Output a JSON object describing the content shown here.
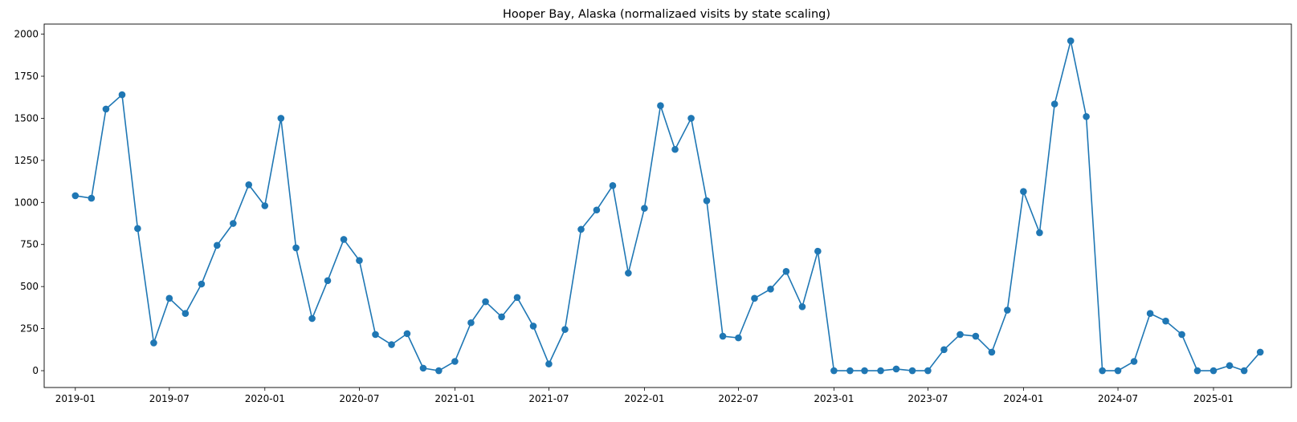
{
  "chart_data": {
    "type": "line",
    "title": "Hooper Bay, Alaska (normalizaed visits by state scaling)",
    "xlabel": "",
    "ylabel": "",
    "marker": "circle",
    "line_color": "#1f77b4",
    "grid": false,
    "legend": "none",
    "xlim": [
      "2018-11-02",
      "2025-05-31"
    ],
    "ylim": [
      -100,
      2060
    ],
    "y_ticks": [
      0,
      250,
      500,
      750,
      1000,
      1250,
      1500,
      1750,
      2000
    ],
    "x_ticks": [
      {
        "date": "2019-01-01",
        "label": "2019-01"
      },
      {
        "date": "2019-07-01",
        "label": "2019-07"
      },
      {
        "date": "2020-01-01",
        "label": "2020-01"
      },
      {
        "date": "2020-07-01",
        "label": "2020-07"
      },
      {
        "date": "2021-01-01",
        "label": "2021-01"
      },
      {
        "date": "2021-07-01",
        "label": "2021-07"
      },
      {
        "date": "2022-01-01",
        "label": "2022-01"
      },
      {
        "date": "2022-07-01",
        "label": "2022-07"
      },
      {
        "date": "2023-01-01",
        "label": "2023-01"
      },
      {
        "date": "2023-07-01",
        "label": "2023-07"
      },
      {
        "date": "2024-01-01",
        "label": "2024-01"
      },
      {
        "date": "2024-07-01",
        "label": "2024-07"
      },
      {
        "date": "2025-01-01",
        "label": "2025-01"
      }
    ],
    "series": [
      {
        "x": [
          "2019-01-01",
          "2019-02-01",
          "2019-03-01",
          "2019-04-01",
          "2019-05-01",
          "2019-06-01",
          "2019-07-01",
          "2019-08-01",
          "2019-09-01",
          "2019-10-01",
          "2019-11-01",
          "2019-12-01",
          "2020-01-01",
          "2020-02-01",
          "2020-03-01",
          "2020-04-01",
          "2020-05-01",
          "2020-06-01",
          "2020-07-01",
          "2020-08-01",
          "2020-09-01",
          "2020-10-01",
          "2020-11-01",
          "2020-12-01",
          "2021-01-01",
          "2021-02-01",
          "2021-03-01",
          "2021-04-01",
          "2021-05-01",
          "2021-06-01",
          "2021-07-01",
          "2021-08-01",
          "2021-09-01",
          "2021-10-01",
          "2021-11-01",
          "2021-12-01",
          "2022-01-01",
          "2022-02-01",
          "2022-03-01",
          "2022-04-01",
          "2022-05-01",
          "2022-06-01",
          "2022-07-01",
          "2022-08-01",
          "2022-09-01",
          "2022-10-01",
          "2022-11-01",
          "2022-12-01",
          "2023-01-01",
          "2023-02-01",
          "2023-03-01",
          "2023-04-01",
          "2023-05-01",
          "2023-06-01",
          "2023-07-01",
          "2023-08-01",
          "2023-09-01",
          "2023-10-01",
          "2023-11-01",
          "2023-12-01",
          "2024-01-01",
          "2024-02-01",
          "2024-03-01",
          "2024-04-01",
          "2024-05-01",
          "2024-06-01",
          "2024-07-01",
          "2024-08-01",
          "2024-09-01",
          "2024-10-01",
          "2024-11-01",
          "2024-12-01",
          "2025-01-01",
          "2025-02-01",
          "2025-03-01",
          "2025-04-01"
        ],
        "y": [
          1040,
          1025,
          1555,
          1640,
          845,
          165,
          430,
          340,
          515,
          745,
          875,
          1105,
          980,
          1500,
          730,
          310,
          535,
          780,
          655,
          215,
          155,
          220,
          15,
          0,
          55,
          285,
          410,
          320,
          435,
          265,
          40,
          245,
          840,
          955,
          1100,
          580,
          965,
          1575,
          1315,
          1500,
          1010,
          205,
          195,
          430,
          485,
          590,
          380,
          710,
          0,
          0,
          0,
          0,
          10,
          0,
          0,
          125,
          215,
          205,
          110,
          360,
          1065,
          820,
          1585,
          1960,
          1510,
          0,
          0,
          55,
          340,
          295,
          215,
          0,
          0,
          30,
          0,
          110
        ]
      }
    ]
  }
}
